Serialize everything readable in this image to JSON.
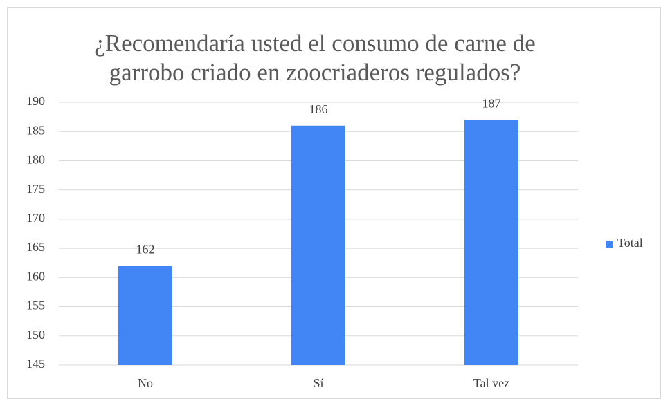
{
  "chart_data": {
    "type": "bar",
    "title": "¿Recomendaría usted el consumo de carne de garrobo criado en zoocriaderos regulados?",
    "categories": [
      "No",
      "Sí",
      "Tal vez"
    ],
    "series": [
      {
        "name": "Total",
        "color": "#4285f4",
        "values": [
          162,
          186,
          187
        ]
      }
    ],
    "ylim": [
      145,
      190
    ],
    "yticks": [
      145,
      150,
      155,
      160,
      165,
      170,
      175,
      180,
      185,
      190
    ],
    "grid": true,
    "legend": "right"
  }
}
